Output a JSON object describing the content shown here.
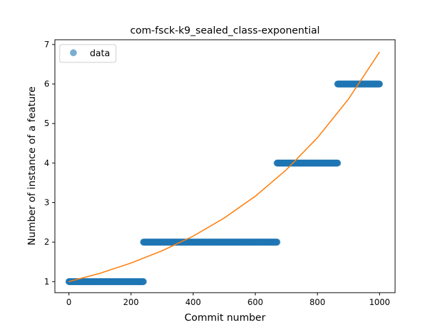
{
  "chart_data": {
    "type": "scatter",
    "title": "com-fsck-k9_sealed_class-exponential",
    "xlabel": "Commit number",
    "ylabel": "Number of instance of a feature",
    "xlim": [
      -45,
      1050
    ],
    "ylim": [
      0.72,
      7.12
    ],
    "xticks": [
      0,
      200,
      400,
      600,
      800,
      1000
    ],
    "yticks": [
      1,
      2,
      3,
      4,
      5,
      6,
      7
    ],
    "grid": false,
    "legend": {
      "placement": "top-left",
      "entries": [
        "data"
      ]
    },
    "series": [
      {
        "name": "data",
        "kind": "scatter",
        "color": "#1f77b4",
        "segments": [
          {
            "x_start": 0,
            "x_end": 240,
            "y": 1
          },
          {
            "x_start": 240,
            "x_end": 670,
            "y": 2
          },
          {
            "x_start": 670,
            "x_end": 865,
            "y": 4
          },
          {
            "x_start": 865,
            "x_end": 1000,
            "y": 6
          }
        ]
      },
      {
        "kind": "line",
        "color": "#ff7f0e",
        "x": [
          0,
          100,
          200,
          300,
          400,
          500,
          600,
          700,
          800,
          900,
          1000
        ],
        "y": [
          1.0,
          1.21,
          1.47,
          1.78,
          2.15,
          2.61,
          3.16,
          3.83,
          4.64,
          5.62,
          6.81
        ]
      }
    ]
  }
}
